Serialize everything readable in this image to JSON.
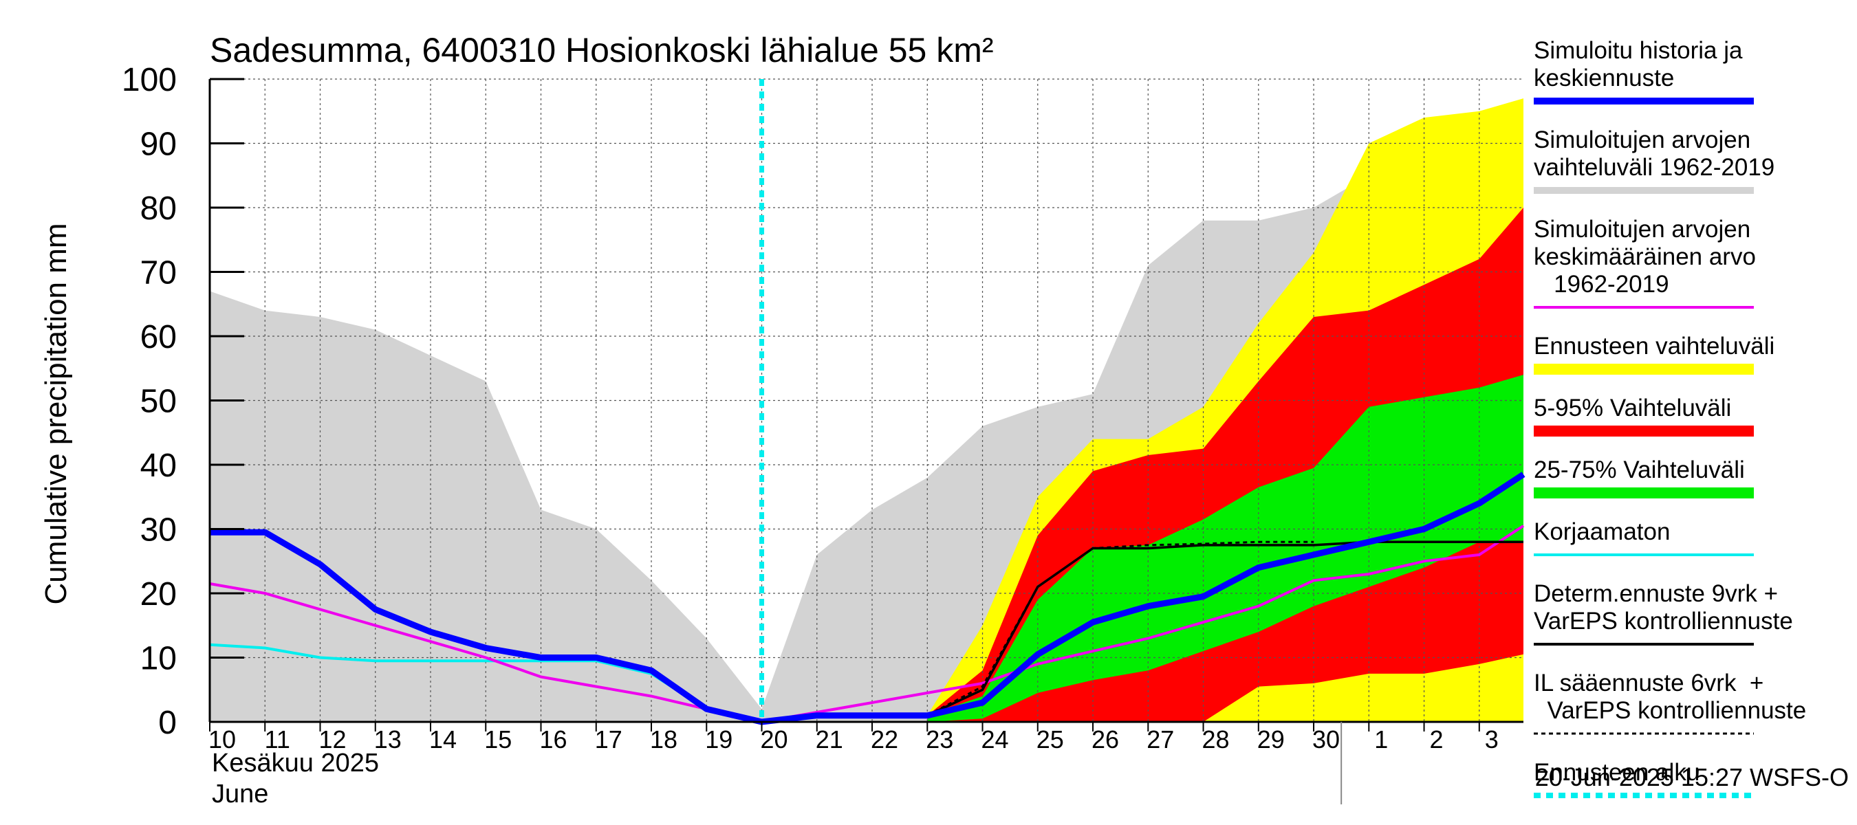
{
  "chart_data": {
    "type": "area",
    "title": "Sadesumma, 6400310 Hosionkoski lähialue 55 km²",
    "ylabel": "Cumulative precipitation   mm",
    "ylim": [
      0,
      100
    ],
    "yticks": [
      "0",
      "10",
      "20",
      "30",
      "40",
      "50",
      "60",
      "70",
      "80",
      "90",
      "100"
    ],
    "xaxis_note": "x = day index; 0 = June 10, 20 = June 30, 21 = July 1, 23.8 = end of July 3",
    "xlim": [
      0,
      23.8
    ],
    "xticks": [
      {
        "x": 0,
        "label": "10"
      },
      {
        "x": 1,
        "label": "11"
      },
      {
        "x": 2,
        "label": "12"
      },
      {
        "x": 3,
        "label": "13"
      },
      {
        "x": 4,
        "label": "14"
      },
      {
        "x": 5,
        "label": "15"
      },
      {
        "x": 6,
        "label": "16"
      },
      {
        "x": 7,
        "label": "17"
      },
      {
        "x": 8,
        "label": "18"
      },
      {
        "x": 9,
        "label": "19"
      },
      {
        "x": 10,
        "label": "20"
      },
      {
        "x": 11,
        "label": "21"
      },
      {
        "x": 12,
        "label": "22"
      },
      {
        "x": 13,
        "label": "23"
      },
      {
        "x": 14,
        "label": "24"
      },
      {
        "x": 15,
        "label": "25"
      },
      {
        "x": 16,
        "label": "26"
      },
      {
        "x": 17,
        "label": "27"
      },
      {
        "x": 18,
        "label": "28"
      },
      {
        "x": 19,
        "label": "29"
      },
      {
        "x": 20,
        "label": "30"
      },
      {
        "x": 21,
        "label": "1"
      },
      {
        "x": 22,
        "label": "2"
      },
      {
        "x": 23,
        "label": "3"
      }
    ],
    "month_label_fi": "Kesäkuu   2025",
    "month_label_en": "June",
    "forecast_start_x": 10,
    "month_divider_x": 20.5,
    "timestamp": "20-Jun-2025 15:27 WSFS-O",
    "colors": {
      "history_range": "#d3d3d3",
      "forecast_range": "#ffff00",
      "p5_95": "#ff0000",
      "p25_75": "#00ee00",
      "median": "#0000ff",
      "mean": "#ee00ee",
      "uncorrected": "#00eeee",
      "determ": "#000000",
      "forecast_start": "#00eeee"
    },
    "series": [
      {
        "name": "Simuloitujen arvojen vaihteluväli 1962-2019",
        "kind": "band",
        "x": [
          0,
          1,
          2,
          3,
          4,
          5,
          6,
          7,
          8,
          9,
          10,
          11,
          12,
          13,
          14,
          15,
          16,
          17,
          18,
          19,
          20,
          21,
          22,
          23,
          23.8
        ],
        "upper": [
          67,
          64,
          63,
          61,
          57,
          53,
          33,
          30,
          22,
          13,
          2,
          26,
          33,
          38,
          46,
          49,
          51,
          71,
          78,
          78,
          80,
          85,
          91,
          93,
          96
        ],
        "lower": [
          0,
          0,
          0,
          0,
          0,
          0,
          0,
          0,
          0,
          0,
          0,
          0,
          0,
          0,
          0,
          0,
          0,
          0,
          0,
          0,
          0,
          0,
          0,
          0,
          0
        ]
      },
      {
        "name": "Ennusteen vaihteluväli",
        "kind": "band",
        "x": [
          13,
          14,
          15,
          16,
          17,
          18,
          19,
          20,
          21,
          22,
          23,
          23.8
        ],
        "upper": [
          1,
          15,
          35,
          44,
          44,
          49,
          62,
          73,
          90,
          94,
          95,
          97
        ],
        "lower": [
          0,
          0,
          0,
          0,
          0,
          0,
          0,
          0,
          0,
          0,
          0,
          0
        ]
      },
      {
        "name": "5-95% Vaihteluväli",
        "kind": "band",
        "x": [
          13,
          14,
          15,
          16,
          17,
          18,
          19,
          20,
          21,
          22,
          23,
          23.8
        ],
        "upper": [
          1,
          8,
          29,
          39,
          41.5,
          42.5,
          53,
          63,
          64,
          68,
          72,
          80
        ],
        "lower": [
          0,
          0,
          0,
          0,
          0,
          0,
          5.5,
          6,
          7.5,
          7.5,
          9,
          10.5
        ]
      },
      {
        "name": "25-75% Vaihteluväli",
        "kind": "band",
        "x": [
          13,
          14,
          15,
          16,
          17,
          18,
          19,
          20,
          21,
          22,
          23,
          23.8
        ],
        "upper": [
          1,
          4,
          19,
          27,
          27.5,
          31.5,
          36.5,
          39.5,
          49,
          50.5,
          52,
          54
        ],
        "lower": [
          0,
          0.5,
          4.5,
          6.5,
          8,
          11,
          14,
          18,
          21,
          24,
          28,
          28
        ]
      },
      {
        "name": "Simuloitu historia ja keskiennuste",
        "kind": "line",
        "x": [
          0,
          1,
          2,
          3,
          4,
          5,
          6,
          7,
          8,
          9,
          10,
          11,
          12,
          13,
          14,
          15,
          16,
          17,
          18,
          19,
          20,
          21,
          22,
          23,
          23.8
        ],
        "values": [
          29.5,
          29.5,
          24.5,
          17.5,
          14,
          11.5,
          10,
          10,
          8,
          2,
          0,
          1,
          1,
          1,
          3,
          10.5,
          15.5,
          18,
          19.5,
          24,
          26,
          28,
          30,
          34,
          38.5
        ]
      },
      {
        "name": "Simuloitujen arvojen keskimääräinen arvo 1962-2019",
        "kind": "line",
        "x": [
          0,
          1,
          2,
          3,
          4,
          5,
          6,
          7,
          8,
          9,
          10,
          11,
          12,
          13,
          14,
          15,
          16,
          17,
          18,
          19,
          20,
          21,
          22,
          23,
          23.8
        ],
        "values": [
          21.5,
          20,
          17.5,
          15,
          12.5,
          10,
          7,
          5.5,
          4,
          2,
          0,
          1.5,
          3,
          4.5,
          6,
          9,
          11,
          13,
          15.5,
          18,
          22,
          23,
          25,
          26,
          30.5
        ]
      },
      {
        "name": "Korjaamaton",
        "kind": "line",
        "x": [
          0,
          1,
          2,
          3,
          4,
          5,
          6,
          7,
          8,
          9,
          10
        ],
        "values": [
          12,
          11.5,
          10,
          9.5,
          9.5,
          9.5,
          9.5,
          9.5,
          7.5,
          2,
          0
        ]
      },
      {
        "name": "Determ.ennuste 9vrk + VarEPS kontrolliennuste",
        "kind": "line",
        "x": [
          10,
          11,
          12,
          13,
          14,
          15,
          16,
          17,
          18,
          19,
          20,
          21,
          22,
          23,
          23.8
        ],
        "values": [
          0,
          1,
          1,
          1,
          5,
          21,
          27,
          27,
          27.5,
          27.5,
          27.5,
          28,
          28,
          28,
          28
        ]
      },
      {
        "name": "IL sääennuste 6vrk + VarEPS kontrolliennuste",
        "kind": "dashed",
        "x": [
          10,
          11,
          12,
          13,
          14,
          15,
          16,
          17,
          18,
          19,
          20
        ],
        "values": [
          0,
          1,
          1,
          1,
          5.5,
          21,
          27,
          27.5,
          27.7,
          28,
          28
        ]
      }
    ]
  },
  "legend": [
    {
      "key": "median",
      "lines": [
        "Simuloitu historia ja",
        "keskiennuste"
      ],
      "style": "thick",
      "color": "#0000ff"
    },
    {
      "key": "range",
      "lines": [
        "Simuloitujen arvojen",
        "vaihteluväli 1962-2019"
      ],
      "style": "thick",
      "color": "#d3d3d3"
    },
    {
      "key": "mean",
      "lines": [
        "Simuloitujen arvojen",
        "keskimääräinen arvo",
        "   1962-2019"
      ],
      "style": "thin",
      "color": "#ee00ee"
    },
    {
      "key": "forecast_range",
      "lines": [
        "Ennusteen vaihteluväli"
      ],
      "style": "band",
      "color": "#ffff00"
    },
    {
      "key": "p5_95",
      "lines": [
        "5-95% Vaihteluväli"
      ],
      "style": "band",
      "color": "#ff0000"
    },
    {
      "key": "p25_75",
      "lines": [
        "25-75% Vaihteluväli"
      ],
      "style": "band",
      "color": "#00ee00"
    },
    {
      "key": "uncorrected",
      "lines": [
        "Korjaamaton"
      ],
      "style": "thin",
      "color": "#00eeee"
    },
    {
      "key": "determ",
      "lines": [
        "Determ.ennuste 9vrk +",
        "VarEPS kontrolliennuste"
      ],
      "style": "thin",
      "color": "#000000"
    },
    {
      "key": "il",
      "lines": [
        "IL sääennuste 6vrk  +",
        "  VarEPS kontrolliennuste"
      ],
      "style": "dashed",
      "color": "#000000"
    },
    {
      "key": "start",
      "lines": [
        "Ennusteen alku"
      ],
      "style": "dotted",
      "color": "#00eeee"
    }
  ]
}
